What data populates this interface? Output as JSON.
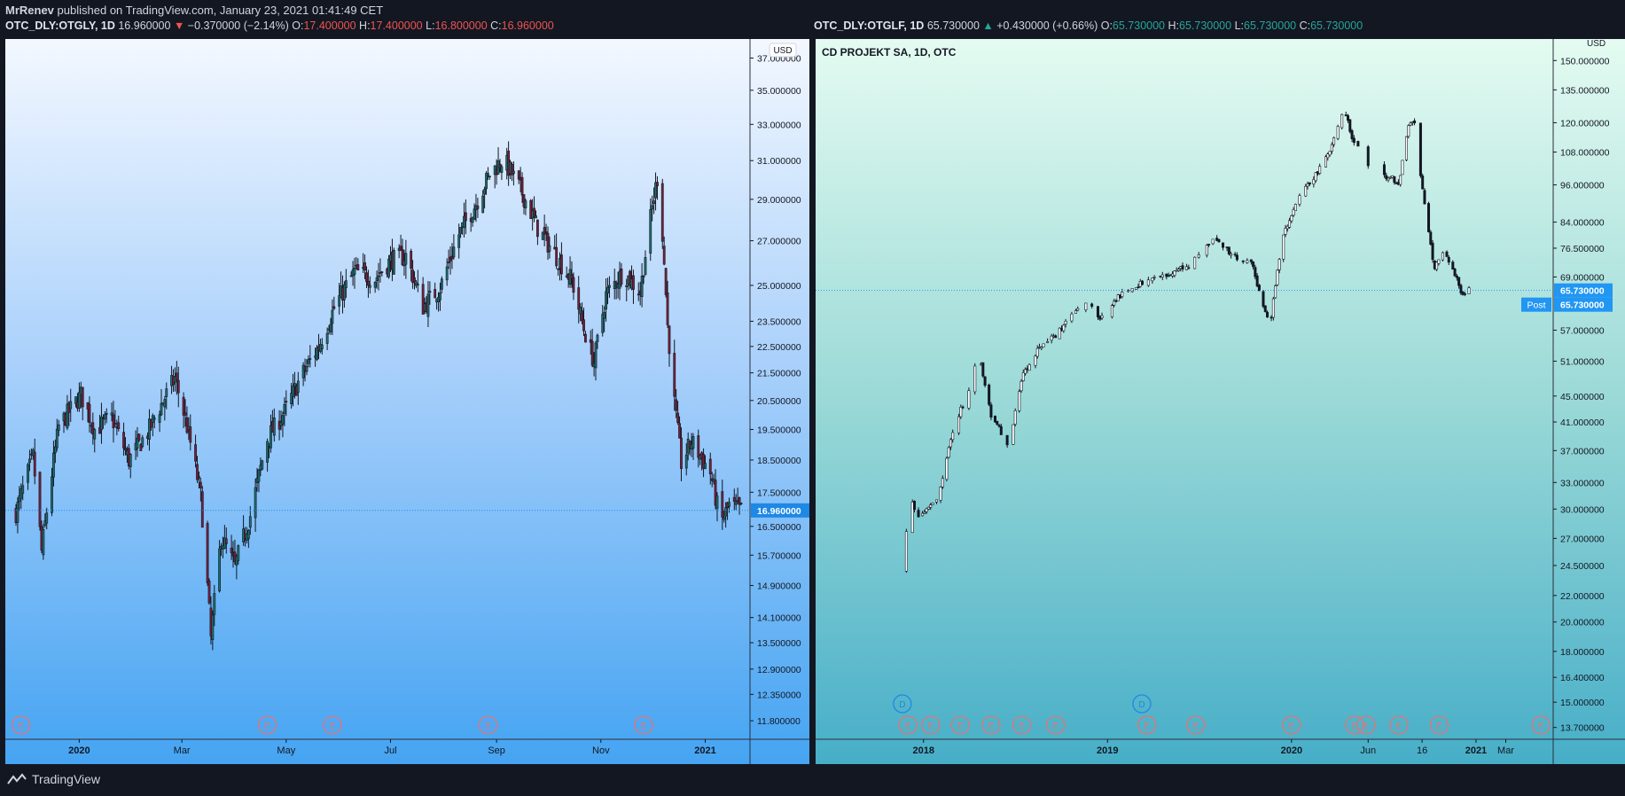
{
  "header": {
    "author": "MrRenev",
    "published_text": "published on TradingView.com, January 23, 2021 01:41:49 CET"
  },
  "footer": {
    "brand": "TradingView"
  },
  "charts": {
    "left": {
      "symbol": "OTC_DLY:OTGLY, 1D",
      "last": "16.960000",
      "change": "−0.370000 (−2.14%)",
      "o_label": "O:",
      "o": "17.400000",
      "h_label": "H:",
      "h": "17.400000",
      "l_label": "L:",
      "l": "16.800000",
      "c_label": "C:",
      "c": "16.960000",
      "currency": "USD",
      "price_tag": "16.960000"
    },
    "right": {
      "symbol": "OTC_DLY:OTGLF, 1D",
      "last": "65.730000",
      "change": "+0.430000 (+0.66%)",
      "o_label": "O:",
      "o": "65.730000",
      "h_label": "H:",
      "h": "65.730000",
      "l_label": "L:",
      "l": "65.730000",
      "c_label": "C:",
      "c": "65.730000",
      "title": "CD PROJEKT SA, 1D, OTC",
      "currency": "USD",
      "price_tag": "65.730000",
      "post_label": "Post",
      "post_price": "65.730000"
    }
  },
  "chart_data": [
    {
      "type": "candlestick",
      "symbol": "OTC_DLY:OTGLY",
      "interval": "1D",
      "x_ticks": [
        "2020",
        "Mar",
        "May",
        "Jul",
        "Sep",
        "Nov",
        "2021"
      ],
      "x_tick_dates": [
        "2020-01-01",
        "2020-03-01",
        "2020-05-01",
        "2020-07-01",
        "2020-09-01",
        "2020-11-01",
        "2021-01-01"
      ],
      "x_range": [
        "2019-11-25",
        "2021-01-22"
      ],
      "y_ticks": [
        "37.000000",
        "35.000000",
        "33.000000",
        "31.000000",
        "29.000000",
        "27.000000",
        "25.000000",
        "23.500000",
        "22.500000",
        "21.500000",
        "20.500000",
        "19.500000",
        "18.500000",
        "17.500000",
        "16.500000",
        "15.700000",
        "14.900000",
        "14.100000",
        "13.500000",
        "12.900000",
        "12.350000",
        "11.800000"
      ],
      "y_tick_values": [
        37,
        35,
        33,
        31,
        29,
        27,
        25,
        23.5,
        22.5,
        21.5,
        20.5,
        19.5,
        18.5,
        17.5,
        16.5,
        15.7,
        14.9,
        14.1,
        13.5,
        12.9,
        12.35,
        11.8
      ],
      "y_scale": "log",
      "ylim": [
        11.5,
        38
      ],
      "current_price": 16.96,
      "earnings_markers": {
        "label": "E",
        "dates": [
          "2019-11-28",
          "2020-04-20",
          "2020-05-28",
          "2020-08-27",
          "2020-11-26"
        ]
      },
      "close_path": [
        [
          "2019-11-25",
          16.9
        ],
        [
          "2019-12-05",
          18.6
        ],
        [
          "2019-12-10",
          15.8
        ],
        [
          "2019-12-20",
          19.6
        ],
        [
          "2020-01-02",
          20.7
        ],
        [
          "2020-01-10",
          19.5
        ],
        [
          "2020-01-20",
          19.9
        ],
        [
          "2020-01-30",
          18.5
        ],
        [
          "2020-02-10",
          19.4
        ],
        [
          "2020-02-20",
          20.6
        ],
        [
          "2020-02-26",
          21.3
        ],
        [
          "2020-03-04",
          19.6
        ],
        [
          "2020-03-12",
          17.4
        ],
        [
          "2020-03-18",
          13.6
        ],
        [
          "2020-03-24",
          16.2
        ],
        [
          "2020-04-01",
          15.4
        ],
        [
          "2020-04-10",
          16.8
        ],
        [
          "2020-04-20",
          19.2
        ],
        [
          "2020-04-30",
          20.1
        ],
        [
          "2020-05-10",
          21.4
        ],
        [
          "2020-05-20",
          22.5
        ],
        [
          "2020-05-30",
          24.2
        ],
        [
          "2020-06-10",
          25.6
        ],
        [
          "2020-06-22",
          25.3
        ],
        [
          "2020-07-01",
          26.1
        ],
        [
          "2020-07-10",
          26.3
        ],
        [
          "2020-07-20",
          24.1
        ],
        [
          "2020-07-30",
          24.9
        ],
        [
          "2020-08-10",
          27.3
        ],
        [
          "2020-08-20",
          28.8
        ],
        [
          "2020-08-28",
          30.3
        ],
        [
          "2020-09-05",
          31.1
        ],
        [
          "2020-09-15",
          29.5
        ],
        [
          "2020-09-25",
          27.6
        ],
        [
          "2020-10-05",
          26.4
        ],
        [
          "2020-10-15",
          25.2
        ],
        [
          "2020-10-22",
          23.2
        ],
        [
          "2020-10-28",
          21.9
        ],
        [
          "2020-11-04",
          24.6
        ],
        [
          "2020-11-14",
          25.6
        ],
        [
          "2020-11-24",
          24.7
        ],
        [
          "2020-12-01",
          28.6
        ],
        [
          "2020-12-04",
          30.1
        ],
        [
          "2020-12-07",
          27.3
        ],
        [
          "2020-12-10",
          23.3
        ],
        [
          "2020-12-14",
          20.4
        ],
        [
          "2020-12-18",
          18.4
        ],
        [
          "2020-12-24",
          19.1
        ],
        [
          "2021-01-04",
          18.1
        ],
        [
          "2021-01-10",
          16.6
        ],
        [
          "2021-01-15",
          17.1
        ],
        [
          "2021-01-22",
          16.96
        ]
      ]
    },
    {
      "type": "candlestick",
      "symbol": "OTC_DLY:OTGLF",
      "interval": "1D",
      "title": "CD PROJEKT SA, 1D, OTC",
      "x_ticks": [
        "2018",
        "2019",
        "2020",
        "Jun",
        "16",
        "2021",
        "Mar"
      ],
      "x_tick_dates": [
        "2018-01-01",
        "2019-01-01",
        "2020-01-01",
        "2020-06-01",
        "2020-09-16",
        "2021-01-01",
        "2021-03-01"
      ],
      "x_range": [
        "2017-06-15",
        "2021-05-20"
      ],
      "y_ticks": [
        "150.000000",
        "135.000000",
        "120.000000",
        "108.000000",
        "96.000000",
        "84.000000",
        "76.500000",
        "69.000000",
        "57.000000",
        "51.000000",
        "45.000000",
        "41.000000",
        "37.000000",
        "33.000000",
        "30.000000",
        "27.000000",
        "24.500000",
        "22.000000",
        "20.000000",
        "18.000000",
        "16.400000",
        "15.000000",
        "13.700000"
      ],
      "y_tick_values": [
        150,
        135,
        120,
        108,
        96,
        84,
        76.5,
        69,
        57,
        51,
        45,
        41,
        37,
        33,
        30,
        27,
        24.5,
        22,
        20,
        18,
        16.4,
        15,
        13.7
      ],
      "y_scale": "log",
      "ylim": [
        13.3,
        160
      ],
      "current_price": 65.73,
      "post_price": 65.73,
      "dividend_markers": {
        "label": "D",
        "dates": [
          "2017-11-20",
          "2019-03-10"
        ]
      },
      "earnings_markers": {
        "label": "E",
        "dates": [
          "2017-12-01",
          "2018-01-15",
          "2018-03-15",
          "2018-05-15",
          "2018-07-15",
          "2018-09-20",
          "2019-03-20",
          "2019-06-25",
          "2020-01-01",
          "2020-05-05",
          "2020-05-28",
          "2020-08-01",
          "2020-10-20",
          "2021-05-10"
        ]
      },
      "close_path": [
        [
          "2017-11-20",
          24.0
        ],
        [
          "2017-12-05",
          31.2
        ],
        [
          "2017-12-20",
          29.2
        ],
        [
          "2018-01-10",
          30.2
        ],
        [
          "2018-02-01",
          31.5
        ],
        [
          "2018-03-01",
          40.0
        ],
        [
          "2018-04-01",
          46.0
        ],
        [
          "2018-04-20",
          52.5
        ],
        [
          "2018-05-15",
          42.0
        ],
        [
          "2018-06-20",
          37.5
        ],
        [
          "2018-07-15",
          48.0
        ],
        [
          "2018-08-15",
          53.0
        ],
        [
          "2018-09-20",
          56.0
        ],
        [
          "2018-10-20",
          60.0
        ],
        [
          "2018-11-20",
          63.0
        ],
        [
          "2018-12-20",
          59.5
        ],
        [
          "2019-01-20",
          64.0
        ],
        [
          "2019-03-01",
          67.0
        ],
        [
          "2019-04-15",
          69.0
        ],
        [
          "2019-06-15",
          72.0
        ],
        [
          "2019-08-01",
          80.0
        ],
        [
          "2019-09-01",
          75.0
        ],
        [
          "2019-10-15",
          72.0
        ],
        [
          "2019-11-01",
          64.0
        ],
        [
          "2019-11-20",
          58.0
        ],
        [
          "2019-12-15",
          80.0
        ],
        [
          "2020-01-15",
          92.0
        ],
        [
          "2020-02-20",
          100.0
        ],
        [
          "2020-03-20",
          110.0
        ],
        [
          "2020-04-15",
          126.0
        ],
        [
          "2020-05-01",
          113.0
        ],
        [
          "2020-05-20",
          108.0
        ],
        [
          "2020-06-15",
          98.0
        ],
        [
          "2020-07-15",
          99.0
        ],
        [
          "2020-08-01",
          96.0
        ],
        [
          "2020-08-20",
          118.0
        ],
        [
          "2020-09-01",
          121.0
        ],
        [
          "2020-09-10",
          103.0
        ],
        [
          "2020-09-25",
          84.0
        ],
        [
          "2020-10-10",
          71.0
        ],
        [
          "2020-10-25",
          76.0
        ],
        [
          "2020-11-10",
          73.0
        ],
        [
          "2020-11-25",
          68.0
        ],
        [
          "2020-12-05",
          64.0
        ],
        [
          "2020-12-15",
          66.0
        ],
        [
          "2020-12-20",
          65.73
        ]
      ]
    }
  ]
}
